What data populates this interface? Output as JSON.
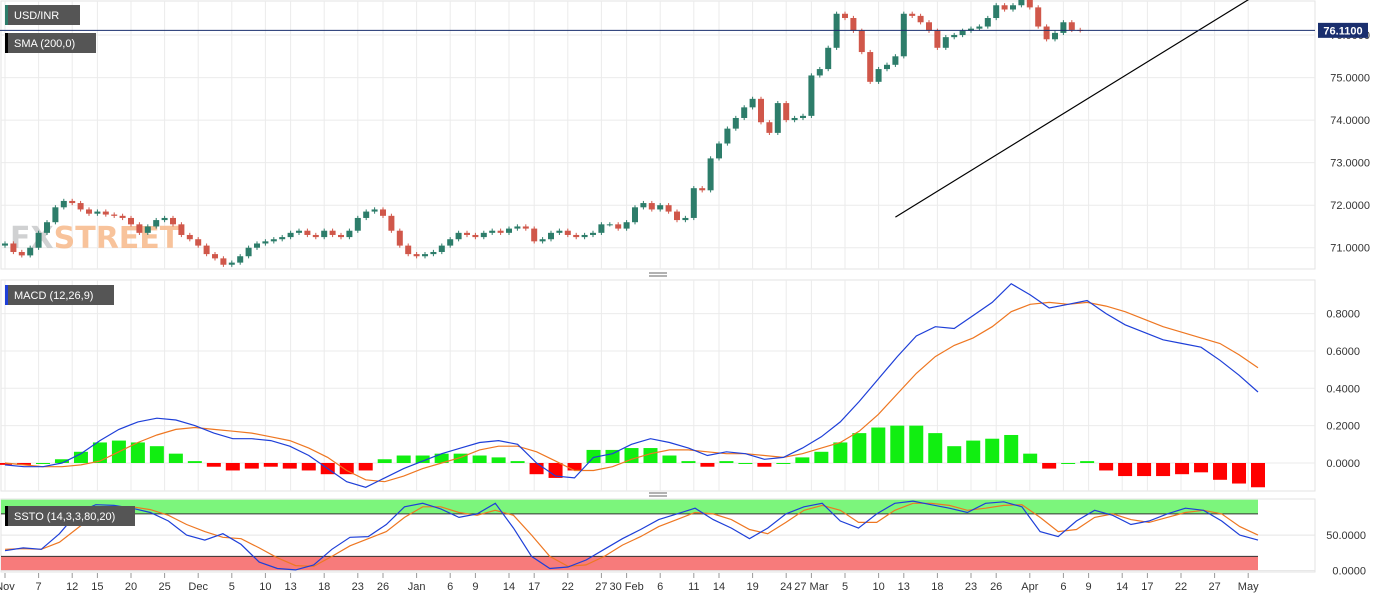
{
  "panels": {
    "price": {
      "tag": "USD/INR",
      "overlay_tag": "SMA (200,0)",
      "last_value": "76.1100"
    },
    "macd": {
      "tag": "MACD (12,26,9)"
    },
    "stoch": {
      "tag": "SSTO (14,3,3,80,20)"
    }
  },
  "watermark": {
    "left": "FX",
    "right": "STREET"
  },
  "colors": {
    "up": "#2d7d6a",
    "down": "#d0574a",
    "macd_line": "#1e3fd8",
    "signal_line": "#ee7722",
    "hist_pos": "#11ee11",
    "hist_neg": "#ff0000",
    "overbought_zone": "#7cf57c",
    "oversold_zone": "#f77b7b",
    "stoch_k": "#1e3fd8",
    "stoch_d": "#ee7722",
    "price_line": "#1a2f6e",
    "trendline": "#000000"
  },
  "chart_data": [
    {
      "type": "candlestick",
      "title": "USD/INR",
      "ylim": [
        70.5,
        76.8
      ],
      "y_ticks": [
        "71.0000",
        "72.0000",
        "73.0000",
        "74.0000",
        "75.0000",
        "76.0000"
      ],
      "x_ticks": [
        "Nov",
        "7",
        "12",
        "15",
        "20",
        "25",
        "Dec",
        "5",
        "10",
        "13",
        "18",
        "23",
        "26",
        "Jan",
        "6",
        "9",
        "14",
        "17",
        "22",
        "27",
        "30 Feb",
        "6",
        "11",
        "14",
        "19",
        "24",
        "27 Mar",
        "5",
        "10",
        "13",
        "18",
        "23",
        "26",
        "Apr",
        "6",
        "9",
        "14",
        "17",
        "22",
        "27",
        "May"
      ],
      "x_tick_index": [
        0,
        4,
        8,
        11,
        15,
        19,
        23,
        27,
        31,
        34,
        38,
        42,
        45,
        49,
        53,
        56,
        60,
        63,
        67,
        71,
        74,
        78,
        82,
        85,
        89,
        93,
        96,
        100,
        104,
        107,
        111,
        115,
        118,
        122,
        126,
        129,
        133,
        136,
        140,
        144,
        148
      ],
      "closes": [
        71.1,
        70.9,
        70.82,
        71.0,
        71.35,
        71.6,
        71.95,
        72.1,
        72.05,
        71.9,
        71.8,
        71.85,
        71.78,
        71.75,
        71.7,
        71.55,
        71.35,
        71.5,
        71.65,
        71.7,
        71.55,
        71.3,
        71.2,
        71.05,
        70.85,
        70.75,
        70.6,
        70.65,
        70.8,
        71.0,
        71.1,
        71.15,
        71.2,
        71.25,
        71.35,
        71.4,
        71.3,
        71.25,
        71.4,
        71.3,
        71.25,
        71.4,
        71.7,
        71.85,
        71.9,
        71.75,
        71.4,
        71.05,
        70.85,
        70.8,
        70.85,
        70.9,
        71.05,
        71.2,
        71.35,
        71.3,
        71.25,
        71.35,
        71.4,
        71.35,
        71.45,
        71.5,
        71.45,
        71.15,
        71.2,
        71.35,
        71.4,
        71.3,
        71.25,
        71.3,
        71.35,
        71.55,
        71.55,
        71.45,
        71.6,
        71.95,
        72.05,
        71.9,
        72.0,
        71.85,
        71.65,
        71.7,
        72.4,
        72.35,
        73.1,
        73.45,
        73.8,
        74.05,
        74.3,
        74.5,
        73.95,
        73.7,
        74.4,
        74.0,
        74.05,
        74.1,
        75.05,
        75.2,
        75.7,
        76.5,
        76.4,
        76.1,
        75.6,
        74.9,
        75.2,
        75.3,
        75.5,
        76.5,
        76.45,
        76.3,
        76.1,
        75.7,
        75.95,
        76.0,
        76.1,
        76.15,
        76.2,
        76.4,
        76.7,
        76.6,
        76.7,
        76.9,
        76.65,
        76.2,
        75.9,
        76.05,
        76.3,
        76.12,
        76.11
      ],
      "last_price": 76.11,
      "trendline": [
        {
          "index": 106,
          "price": 71.72
        },
        {
          "index": 149,
          "price": 76.95
        }
      ]
    },
    {
      "type": "bar",
      "title": "MACD (12,26,9)",
      "ylim": [
        -0.15,
        0.98
      ],
      "y_ticks": [
        "0.0000",
        "0.2000",
        "0.4000",
        "0.6000",
        "0.8000"
      ],
      "series": [
        {
          "name": "MACD",
          "values": [
            -0.01,
            -0.02,
            -0.02,
            0.0,
            0.05,
            0.12,
            0.18,
            0.22,
            0.24,
            0.23,
            0.2,
            0.16,
            0.13,
            0.13,
            0.12,
            0.09,
            0.04,
            -0.03,
            -0.1,
            -0.13,
            -0.08,
            -0.03,
            0.01,
            0.05,
            0.08,
            0.11,
            0.12,
            0.1,
            0.0,
            -0.07,
            -0.08,
            0.03,
            0.05,
            0.1,
            0.13,
            0.11,
            0.08,
            0.04,
            0.06,
            0.05,
            0.02,
            0.03,
            0.08,
            0.14,
            0.22,
            0.33,
            0.45,
            0.57,
            0.68,
            0.73,
            0.72,
            0.79,
            0.86,
            0.96,
            0.9,
            0.83,
            0.85,
            0.87,
            0.8,
            0.74,
            0.7,
            0.66,
            0.64,
            0.62,
            0.55,
            0.47,
            0.38
          ]
        },
        {
          "name": "Signal",
          "values": [
            0.0,
            -0.01,
            -0.02,
            -0.02,
            -0.01,
            0.01,
            0.06,
            0.11,
            0.15,
            0.18,
            0.19,
            0.18,
            0.17,
            0.16,
            0.14,
            0.12,
            0.08,
            0.03,
            -0.04,
            -0.09,
            -0.1,
            -0.07,
            -0.03,
            0.0,
            0.03,
            0.07,
            0.09,
            0.09,
            0.06,
            0.01,
            -0.04,
            -0.04,
            -0.02,
            0.02,
            0.05,
            0.07,
            0.07,
            0.06,
            0.05,
            0.05,
            0.04,
            0.03,
            0.05,
            0.08,
            0.11,
            0.17,
            0.26,
            0.37,
            0.48,
            0.57,
            0.63,
            0.67,
            0.73,
            0.81,
            0.85,
            0.86,
            0.85,
            0.86,
            0.84,
            0.81,
            0.77,
            0.73,
            0.7,
            0.67,
            0.64,
            0.58,
            0.51
          ]
        },
        {
          "name": "Histogram",
          "values": [
            -0.01,
            -0.01,
            0.0,
            0.02,
            0.06,
            0.11,
            0.12,
            0.11,
            0.09,
            0.05,
            0.01,
            -0.02,
            -0.04,
            -0.03,
            -0.02,
            -0.03,
            -0.04,
            -0.06,
            -0.06,
            -0.04,
            0.02,
            0.04,
            0.04,
            0.05,
            0.05,
            0.04,
            0.03,
            0.01,
            -0.06,
            -0.08,
            -0.04,
            0.07,
            0.07,
            0.08,
            0.08,
            0.04,
            0.01,
            -0.02,
            0.01,
            0.0,
            -0.02,
            0.0,
            0.03,
            0.06,
            0.11,
            0.16,
            0.19,
            0.2,
            0.2,
            0.16,
            0.09,
            0.12,
            0.13,
            0.15,
            0.05,
            -0.03,
            0.0,
            0.01,
            -0.04,
            -0.07,
            -0.07,
            -0.07,
            -0.06,
            -0.05,
            -0.09,
            -0.11,
            -0.13
          ]
        }
      ]
    },
    {
      "type": "line",
      "title": "SSTO (14,3,3,80,20)",
      "ylim": [
        -2,
        101
      ],
      "y_ticks": [
        "0.0000",
        "50.0000"
      ],
      "overbought": 80,
      "oversold": 20,
      "series": [
        {
          "name": "%K",
          "values": [
            28,
            32,
            30,
            52,
            82,
            93,
            92,
            88,
            82,
            70,
            50,
            43,
            52,
            37,
            12,
            3,
            1,
            8,
            30,
            47,
            48,
            65,
            90,
            95,
            87,
            75,
            80,
            95,
            60,
            20,
            3,
            5,
            15,
            30,
            45,
            58,
            72,
            80,
            88,
            72,
            60,
            45,
            60,
            80,
            90,
            95,
            70,
            60,
            80,
            95,
            98,
            93,
            88,
            82,
            95,
            97,
            90,
            55,
            48,
            70,
            85,
            78,
            65,
            70,
            80,
            88,
            85,
            70,
            50,
            43
          ]
        },
        {
          "name": "%D",
          "values": [
            30,
            31,
            30,
            40,
            60,
            80,
            90,
            90,
            86,
            78,
            65,
            55,
            47,
            45,
            32,
            18,
            7,
            6,
            20,
            35,
            45,
            55,
            75,
            90,
            90,
            82,
            78,
            85,
            78,
            50,
            20,
            6,
            8,
            20,
            36,
            48,
            62,
            72,
            82,
            80,
            72,
            58,
            52,
            68,
            85,
            92,
            85,
            68,
            68,
            85,
            95,
            95,
            92,
            85,
            88,
            92,
            93,
            75,
            55,
            58,
            75,
            80,
            72,
            68,
            75,
            82,
            85,
            80,
            62,
            50
          ]
        }
      ]
    }
  ]
}
